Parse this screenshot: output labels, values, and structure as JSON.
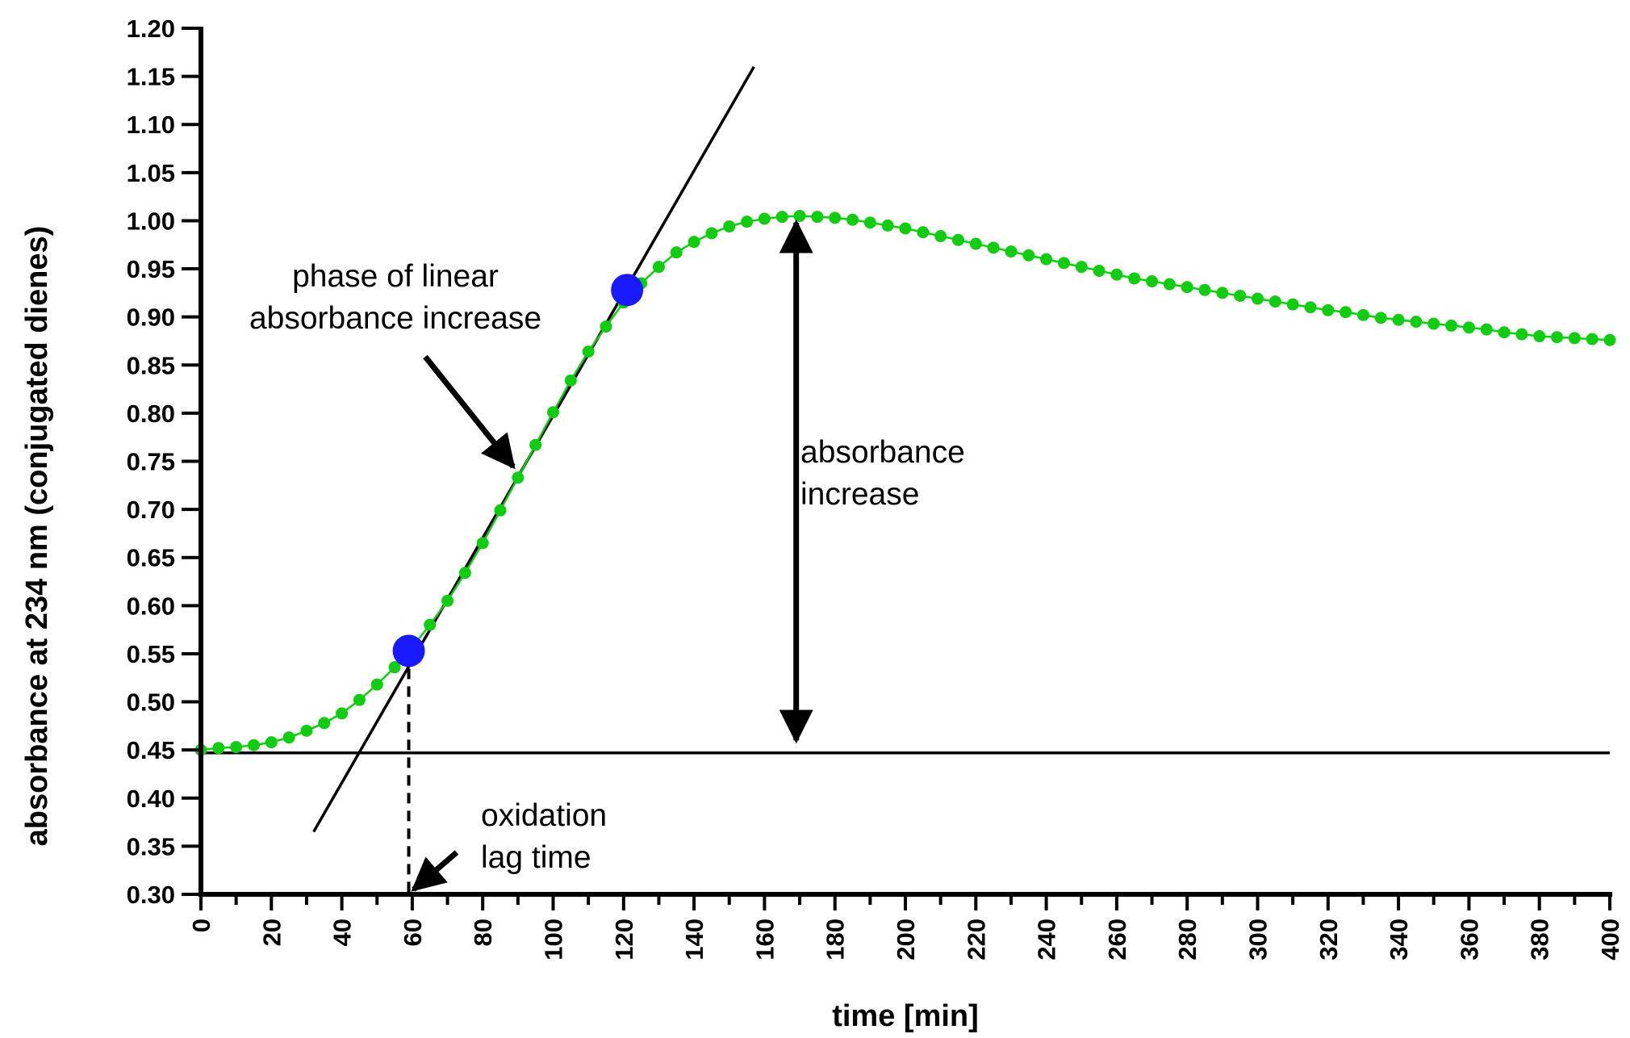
{
  "chart_data": {
    "type": "scatter",
    "xlabel": "time [min]",
    "ylabel": "absorbance at 234 nm (conjugated dienes)",
    "xlim": [
      0,
      400
    ],
    "ylim": [
      0.3,
      1.2
    ],
    "xticks": [
      "0",
      "20",
      "40",
      "60",
      "80",
      "100",
      "120",
      "140",
      "160",
      "180",
      "200",
      "220",
      "240",
      "260",
      "280",
      "300",
      "320",
      "340",
      "360",
      "380",
      "400"
    ],
    "yticks": [
      "0.30",
      "0.35",
      "0.40",
      "0.45",
      "0.50",
      "0.55",
      "0.60",
      "0.65",
      "0.70",
      "0.75",
      "0.80",
      "0.85",
      "0.90",
      "0.95",
      "1.00",
      "1.05",
      "1.10",
      "1.15",
      "1.20"
    ],
    "grid": false,
    "colors": {
      "data": "#11cc11",
      "markers": "#1a1aff",
      "lines": "#000000"
    },
    "series": [
      {
        "x": [
          0,
          5,
          10,
          15,
          20,
          25,
          30,
          35,
          40,
          45,
          50,
          55,
          60,
          65,
          70,
          75,
          80,
          85,
          90,
          95,
          100,
          105,
          110,
          115,
          120,
          125,
          130,
          135,
          140,
          145,
          150,
          155,
          160,
          165,
          170,
          175,
          180,
          185,
          190,
          195,
          200,
          205,
          210,
          215,
          220,
          225,
          230,
          235,
          240,
          245,
          250,
          255,
          260,
          265,
          270,
          275,
          280,
          285,
          290,
          295,
          300,
          305,
          310,
          315,
          320,
          325,
          330,
          335,
          340,
          345,
          350,
          355,
          360,
          365,
          370,
          375,
          380,
          385,
          390,
          395,
          400
        ],
        "y": [
          0.45,
          0.452,
          0.453,
          0.455,
          0.458,
          0.463,
          0.47,
          0.478,
          0.488,
          0.502,
          0.518,
          0.536,
          0.557,
          0.58,
          0.605,
          0.634,
          0.665,
          0.699,
          0.733,
          0.767,
          0.801,
          0.834,
          0.864,
          0.89,
          0.915,
          0.935,
          0.952,
          0.967,
          0.978,
          0.987,
          0.994,
          0.999,
          1.002,
          1.004,
          1.005,
          1.004,
          1.003,
          1.001,
          0.998,
          0.995,
          0.992,
          0.988,
          0.984,
          0.98,
          0.976,
          0.972,
          0.968,
          0.964,
          0.96,
          0.956,
          0.952,
          0.948,
          0.944,
          0.94,
          0.937,
          0.934,
          0.931,
          0.928,
          0.925,
          0.922,
          0.919,
          0.916,
          0.913,
          0.91,
          0.907,
          0.905,
          0.902,
          0.899,
          0.897,
          0.895,
          0.893,
          0.891,
          0.889,
          0.887,
          0.884,
          0.882,
          0.88,
          0.879,
          0.878,
          0.877,
          0.876
        ]
      }
    ],
    "highlight_points": [
      {
        "x": 59,
        "y": 0.553
      },
      {
        "x": 121,
        "y": 0.928
      }
    ],
    "tangent_line": {
      "x": [
        32,
        157
      ],
      "y": [
        0.365,
        1.16
      ]
    },
    "baseline": {
      "y": 0.447,
      "x": [
        0,
        400
      ]
    },
    "lag_marker": {
      "x": 59,
      "y_from": 0.553,
      "y_to": 0.3
    },
    "increase_arrow": {
      "x": 169,
      "y_from": 0.45,
      "y_to": 1.003
    },
    "annotations": {
      "linear_phase": [
        "phase of linear",
        "absorbance increase"
      ],
      "absorbance_increase": [
        "absorbance",
        "increase"
      ],
      "lag_time": [
        "oxidation",
        "lag time"
      ]
    }
  }
}
